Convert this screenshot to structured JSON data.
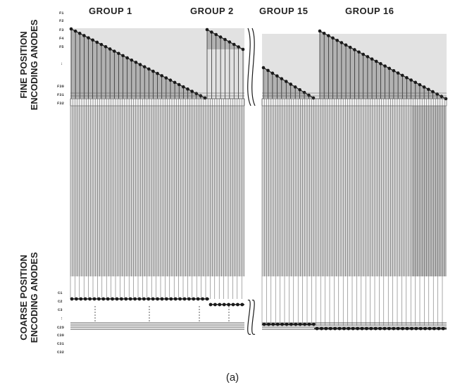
{
  "groups": [
    "GROUP 1",
    "GROUP 2",
    "GROUP 15",
    "GROUP 16"
  ],
  "side_labels": {
    "fine_line1": "FINE POSITION",
    "fine_line2": "ENCODING ANODES",
    "coarse_line1": "COARSE POSITION",
    "coarse_line2": "ENCODING ANODES"
  },
  "fine_anodes": [
    "F1",
    "F2",
    "F3",
    "F4",
    "F5",
    ":",
    "F30",
    "F31",
    "F32"
  ],
  "coarse_anodes": [
    "C1",
    "C2",
    "C3",
    ":",
    "C29",
    "C30",
    "C31",
    "C32"
  ],
  "caption": "(a)",
  "colors": {
    "ink": "#1a1a1a",
    "wire": "#555555",
    "band": "#a9a9a9",
    "panel": "#d4d4d4",
    "shade": "#8e8e8e"
  }
}
